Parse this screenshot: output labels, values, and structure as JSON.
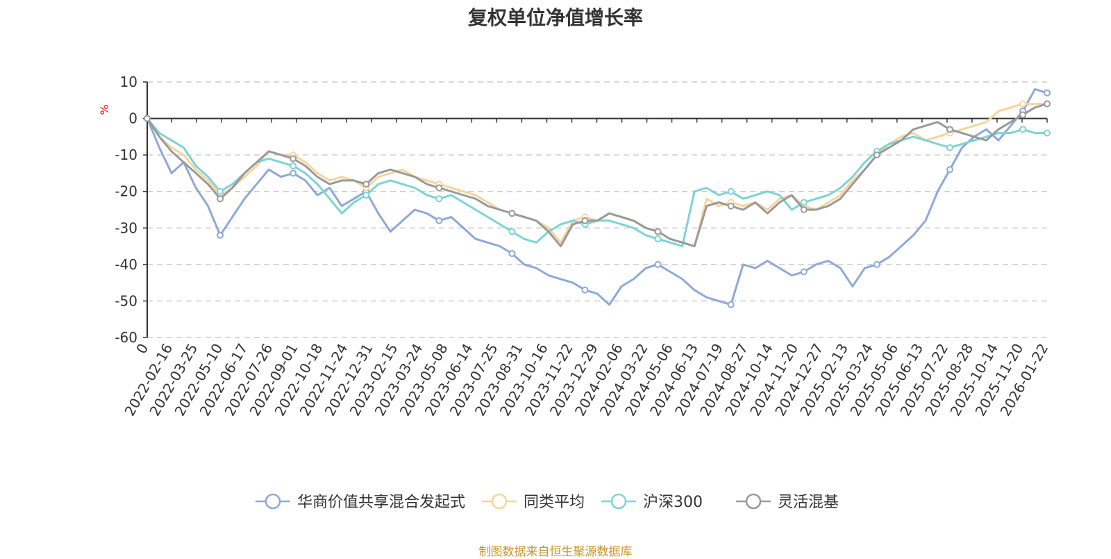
{
  "chart_data": {
    "type": "line",
    "title": "复权单位净值增长率",
    "ylabel": "%",
    "xlabel": "",
    "ylim": [
      -60,
      10
    ],
    "yticks": [
      10,
      0,
      -10,
      -20,
      -30,
      -40,
      -50,
      -60
    ],
    "x_first_label": "0",
    "x_tick_labels": [
      "2022-02-16",
      "2022-03-25",
      "2022-05-10",
      "2022-06-17",
      "2022-07-26",
      "2022-09-01",
      "2022-10-18",
      "2022-11-24",
      "2022-12-31",
      "2023-02-15",
      "2023-03-24",
      "2023-05-08",
      "2023-06-14",
      "2023-07-25",
      "2023-08-31",
      "2023-10-16",
      "2023-11-22",
      "2023-12-29",
      "2024-02-06",
      "2024-03-22",
      "2024-05-06",
      "2024-06-13",
      "2024-07-19",
      "2024-08-27",
      "2024-10-14",
      "2024-11-20",
      "2024-12-27",
      "2025-02-13",
      "2025-03-24",
      "2025-05-06",
      "2025-06-13",
      "2025-07-22",
      "2025-08-28",
      "2025-10-14",
      "2025-11-20",
      "2026-01-22"
    ],
    "grid": true,
    "legend_position": "bottom",
    "series": [
      {
        "name": "华商价值共享混合发起式",
        "color": "#8ea8d8",
        "values": [
          0,
          -8,
          -15,
          -12,
          -19,
          -24,
          -32,
          -27,
          -22,
          -18,
          -14,
          -16,
          -15,
          -17,
          -21,
          -19,
          -24,
          -22,
          -20,
          -26,
          -31,
          -28,
          -25,
          -26,
          -28,
          -27,
          -30,
          -33,
          -34,
          -35,
          -37,
          -40,
          -41,
          -43,
          -44,
          -45,
          -47,
          -48,
          -51,
          -46,
          -44,
          -41,
          -40,
          -42,
          -44,
          -47,
          -49,
          -50,
          -51,
          -40,
          -41,
          -39,
          -41,
          -43,
          -42,
          -40,
          -39,
          -41,
          -46,
          -41,
          -40,
          -38,
          -35,
          -32,
          -28,
          -20,
          -14,
          -8,
          -5,
          -3,
          -6,
          -2,
          2,
          8,
          7
        ]
      },
      {
        "name": "同类平均",
        "color": "#f7d49a",
        "values": [
          0,
          -5,
          -8,
          -10,
          -14,
          -17,
          -21,
          -19,
          -16,
          -13,
          -9,
          -10,
          -10,
          -12,
          -15,
          -17,
          -16,
          -17,
          -19,
          -16,
          -15,
          -14,
          -16,
          -17,
          -18,
          -19,
          -20,
          -21,
          -23,
          -25,
          -26,
          -27,
          -28,
          -30,
          -34,
          -28,
          -27,
          -28,
          -26,
          -27,
          -28,
          -30,
          -31,
          -33,
          -34,
          -35,
          -22,
          -24,
          -23,
          -24,
          -23,
          -25,
          -22,
          -21,
          -24,
          -25,
          -23,
          -21,
          -17,
          -14,
          -10,
          -7,
          -5,
          -4,
          -6,
          -5,
          -4,
          -3,
          -2,
          -1,
          2,
          3,
          4,
          4,
          4
        ]
      },
      {
        "name": "沪深300",
        "color": "#7dd3d6",
        "values": [
          0,
          -4,
          -6,
          -8,
          -13,
          -16,
          -20,
          -18,
          -15,
          -12,
          -11,
          -12,
          -13,
          -15,
          -18,
          -22,
          -26,
          -23,
          -21,
          -18,
          -17,
          -18,
          -19,
          -21,
          -22,
          -21,
          -23,
          -25,
          -27,
          -29,
          -31,
          -33,
          -34,
          -31,
          -29,
          -28,
          -29,
          -28,
          -28,
          -29,
          -30,
          -32,
          -33,
          -34,
          -35,
          -20,
          -19,
          -21,
          -20,
          -22,
          -21,
          -20,
          -21,
          -25,
          -23,
          -22,
          -21,
          -19,
          -16,
          -12,
          -9,
          -7,
          -6,
          -5,
          -6,
          -7,
          -8,
          -7,
          -6,
          -5,
          -4,
          -4,
          -3,
          -4,
          -4
        ]
      },
      {
        "name": "灵活混基",
        "color": "#999999",
        "values": [
          0,
          -5,
          -9,
          -12,
          -15,
          -18,
          -22,
          -19,
          -15,
          -12,
          -9,
          -10,
          -11,
          -13,
          -16,
          -18,
          -17,
          -17,
          -18,
          -15,
          -14,
          -15,
          -16,
          -18,
          -19,
          -20,
          -21,
          -22,
          -24,
          -25,
          -26,
          -27,
          -28,
          -31,
          -35,
          -29,
          -28,
          -28,
          -26,
          -27,
          -28,
          -30,
          -31,
          -33,
          -34,
          -35,
          -24,
          -23,
          -24,
          -25,
          -23,
          -26,
          -23,
          -21,
          -25,
          -25,
          -24,
          -22,
          -18,
          -14,
          -10,
          -8,
          -6,
          -3,
          -2,
          -1,
          -3,
          -4,
          -5,
          -6,
          -3,
          -1,
          1,
          3,
          4
        ]
      }
    ]
  },
  "source_note": "制图数据来自恒生聚源数据库"
}
